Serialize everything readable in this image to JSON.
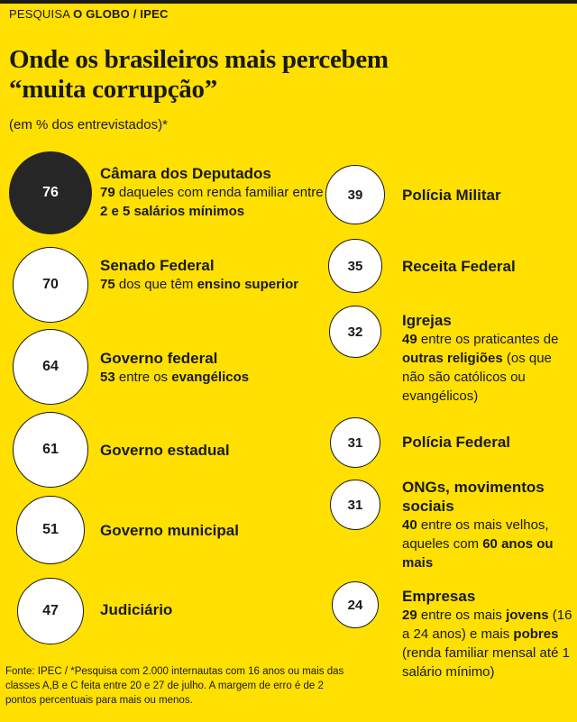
{
  "header": {
    "kicker_prefix": "PESQUISA ",
    "kicker_brand": "O GLOBO / IPEC",
    "title_line1": "Onde os brasileiros mais percebem",
    "title_line2": "“muita corrupção”",
    "subtitle": "(em % dos entrevistados)*"
  },
  "chart_data": {
    "type": "bubble",
    "title": "Onde os brasileiros mais percebem “muita corrupção”",
    "unit": "(em % dos entrevistados)*",
    "categories": [
      "Câmara dos Deputados",
      "Senado Federal",
      "Governo federal",
      "Governo estadual",
      "Governo municipal",
      "Judiciário",
      "Polícia Militar",
      "Receita Federal",
      "Igrejas",
      "Polícia Federal",
      "ONGs, movimentos sociais",
      "Empresas"
    ],
    "values": [
      76,
      70,
      64,
      61,
      51,
      47,
      39,
      35,
      32,
      31,
      31,
      24
    ],
    "items": [
      {
        "name": "Câmara dos Deputados",
        "value": 76,
        "note": [
          {
            "t": "79",
            "b": true
          },
          {
            "t": " daqueles com renda familiar entre ",
            "b": false
          },
          {
            "t": "2 e 5 salários mínimos",
            "b": true
          }
        ]
      },
      {
        "name": "Senado Federal",
        "value": 70,
        "note": [
          {
            "t": "75",
            "b": true
          },
          {
            "t": " dos que têm ",
            "b": false
          },
          {
            "t": "ensino superior",
            "b": true
          }
        ]
      },
      {
        "name": "Governo federal",
        "value": 64,
        "note": [
          {
            "t": "53",
            "b": true
          },
          {
            "t": " entre os ",
            "b": false
          },
          {
            "t": "evangélicos",
            "b": true
          }
        ]
      },
      {
        "name": "Governo estadual",
        "value": 61,
        "note": []
      },
      {
        "name": "Governo municipal",
        "value": 51,
        "note": []
      },
      {
        "name": "Judiciário",
        "value": 47,
        "note": []
      },
      {
        "name": "Polícia Militar",
        "value": 39,
        "note": []
      },
      {
        "name": "Receita Federal",
        "value": 35,
        "note": []
      },
      {
        "name": "Igrejas",
        "value": 32,
        "note": [
          {
            "t": "49",
            "b": true
          },
          {
            "t": " entre os praticantes de ",
            "b": false
          },
          {
            "t": "outras religiões",
            "b": true
          },
          {
            "t": " (os que não são católicos ou evangélicos)",
            "b": false
          }
        ]
      },
      {
        "name": "Polícia Federal",
        "value": 31,
        "note": []
      },
      {
        "name": "ONGs, movimentos sociais",
        "value": 31,
        "note": [
          {
            "t": "40",
            "b": true
          },
          {
            "t": " entre os mais velhos, aqueles com ",
            "b": false
          },
          {
            "t": "60 anos ou mais",
            "b": true
          }
        ]
      },
      {
        "name": "Empresas",
        "value": 24,
        "note": [
          {
            "t": "29",
            "b": true
          },
          {
            "t": " entre os mais ",
            "b": false
          },
          {
            "t": "jovens",
            "b": true
          },
          {
            "t": " (16 a 24 anos) e mais ",
            "b": false
          },
          {
            "t": "pobres",
            "b": true
          },
          {
            "t": " (renda familiar mensal até 1 salário mínimo)",
            "b": false
          }
        ]
      }
    ],
    "highlight": "Câmara dos Deputados"
  },
  "footer": "Fonte: IPEC / *Pesquisa com 2.000 internautas com 16 anos ou mais das classes A,B e C feita entre 20 e 27 de julho. A margem de erro é de 2 pontos percentuais para mais ou menos.",
  "colors": {
    "background": "#FFE000",
    "dark": "#262626",
    "circle": "#FFFFFF"
  }
}
